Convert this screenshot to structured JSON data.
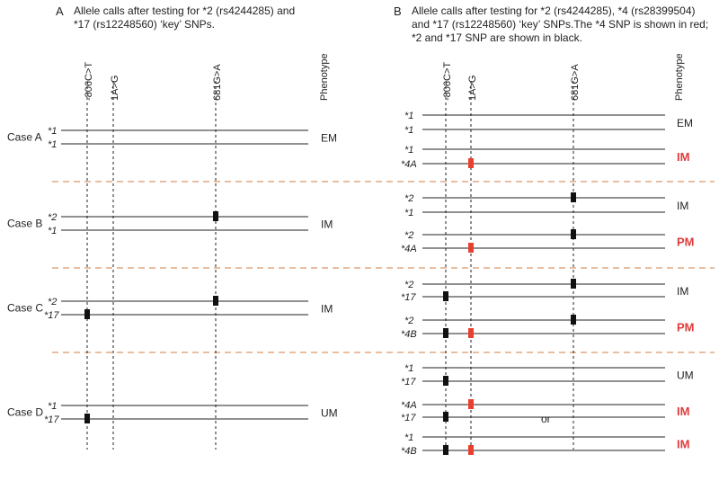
{
  "panels": {
    "A": {
      "label": "A",
      "header_lines": [
        "Allele calls  after testing for *2 (rs4244285) and",
        "*17 (rs12248560) ‘key’ SNPs."
      ],
      "column_labels": [
        "-806C>T",
        "1A>G",
        "681G>A",
        "Phenotype"
      ],
      "cases": [
        {
          "name": "Case A",
          "alleles": [
            {
              "label": "*1",
              "marks": []
            },
            {
              "label": "*1",
              "marks": []
            }
          ],
          "phenotype": "EM",
          "emph": false
        },
        {
          "name": "Case B",
          "alleles": [
            {
              "label": "*2",
              "marks": [
                {
                  "snp": "681G>A",
                  "color": "black"
                }
              ]
            },
            {
              "label": "*1",
              "marks": []
            }
          ],
          "phenotype": "IM",
          "emph": false
        },
        {
          "name": "Case C",
          "alleles": [
            {
              "label": "*2",
              "marks": [
                {
                  "snp": "681G>A",
                  "color": "black"
                }
              ]
            },
            {
              "label": "*17",
              "marks": [
                {
                  "snp": "-806C>T",
                  "color": "black"
                }
              ]
            }
          ],
          "phenotype": "IM",
          "emph": false
        },
        {
          "name": "Case D",
          "alleles": [
            {
              "label": "*1",
              "marks": []
            },
            {
              "label": "*17",
              "marks": [
                {
                  "snp": "-806C>T",
                  "color": "black"
                }
              ]
            }
          ],
          "phenotype": "UM",
          "emph": false
        }
      ]
    },
    "B": {
      "label": "B",
      "header_lines": [
        "Allele calls  after testing for *2 (rs4244285), *4 (rs28399504)",
        "and *17 (rs12248560) ‘key’ SNPs.The *4 SNP is shown in red;",
        "*2 and *17 SNP are shown in black."
      ],
      "column_labels": [
        "-806C>T",
        "1A>G",
        "681G>A",
        "Phenotype"
      ],
      "or_label": "or",
      "groups": [
        {
          "pairs": [
            {
              "alleles": [
                {
                  "label": "*1",
                  "marks": []
                },
                {
                  "label": "*1",
                  "marks": []
                }
              ],
              "phenotype": "EM",
              "emph": false
            },
            {
              "alleles": [
                {
                  "label": "*1",
                  "marks": []
                },
                {
                  "label": "*4A",
                  "marks": [
                    {
                      "snp": "1A>G",
                      "color": "red"
                    }
                  ]
                }
              ],
              "phenotype": "IM",
              "emph": true
            }
          ]
        },
        {
          "pairs": [
            {
              "alleles": [
                {
                  "label": "*2",
                  "marks": [
                    {
                      "snp": "681G>A",
                      "color": "black"
                    }
                  ]
                },
                {
                  "label": "*1",
                  "marks": []
                }
              ],
              "phenotype": "IM",
              "emph": false
            },
            {
              "alleles": [
                {
                  "label": "*2",
                  "marks": [
                    {
                      "snp": "681G>A",
                      "color": "black"
                    }
                  ]
                },
                {
                  "label": "*4A",
                  "marks": [
                    {
                      "snp": "1A>G",
                      "color": "red"
                    }
                  ]
                }
              ],
              "phenotype": "PM",
              "emph": true
            }
          ]
        },
        {
          "pairs": [
            {
              "alleles": [
                {
                  "label": "*2",
                  "marks": [
                    {
                      "snp": "681G>A",
                      "color": "black"
                    }
                  ]
                },
                {
                  "label": "*17",
                  "marks": [
                    {
                      "snp": "-806C>T",
                      "color": "black"
                    }
                  ]
                }
              ],
              "phenotype": "IM",
              "emph": false
            },
            {
              "alleles": [
                {
                  "label": "*2",
                  "marks": [
                    {
                      "snp": "681G>A",
                      "color": "black"
                    }
                  ]
                },
                {
                  "label": "*4B",
                  "marks": [
                    {
                      "snp": "-806C>T",
                      "color": "black"
                    },
                    {
                      "snp": "1A>G",
                      "color": "red"
                    }
                  ]
                }
              ],
              "phenotype": "PM",
              "emph": true
            }
          ]
        },
        {
          "pairs": [
            {
              "alleles": [
                {
                  "label": "*1",
                  "marks": []
                },
                {
                  "label": "*17",
                  "marks": [
                    {
                      "snp": "-806C>T",
                      "color": "black"
                    }
                  ]
                }
              ],
              "phenotype": "UM",
              "emph": false
            },
            {
              "alleles": [
                {
                  "label": "*4A",
                  "marks": [
                    {
                      "snp": "1A>G",
                      "color": "red"
                    }
                  ]
                },
                {
                  "label": "*17",
                  "marks": [
                    {
                      "snp": "-806C>T",
                      "color": "black"
                    }
                  ]
                }
              ],
              "phenotype": "IM",
              "emph": true
            },
            {
              "alleles": [
                {
                  "label": "*1",
                  "marks": []
                },
                {
                  "label": "*4B",
                  "marks": [
                    {
                      "snp": "-806C>T",
                      "color": "black"
                    },
                    {
                      "snp": "1A>G",
                      "color": "red"
                    }
                  ]
                }
              ],
              "phenotype": "IM",
              "emph": true
            }
          ]
        }
      ]
    }
  },
  "colors": {
    "text": "#222222",
    "line": "#222222",
    "red": "#e8402f",
    "emph_text": "#e03c3c",
    "separator": "#e0a982"
  }
}
